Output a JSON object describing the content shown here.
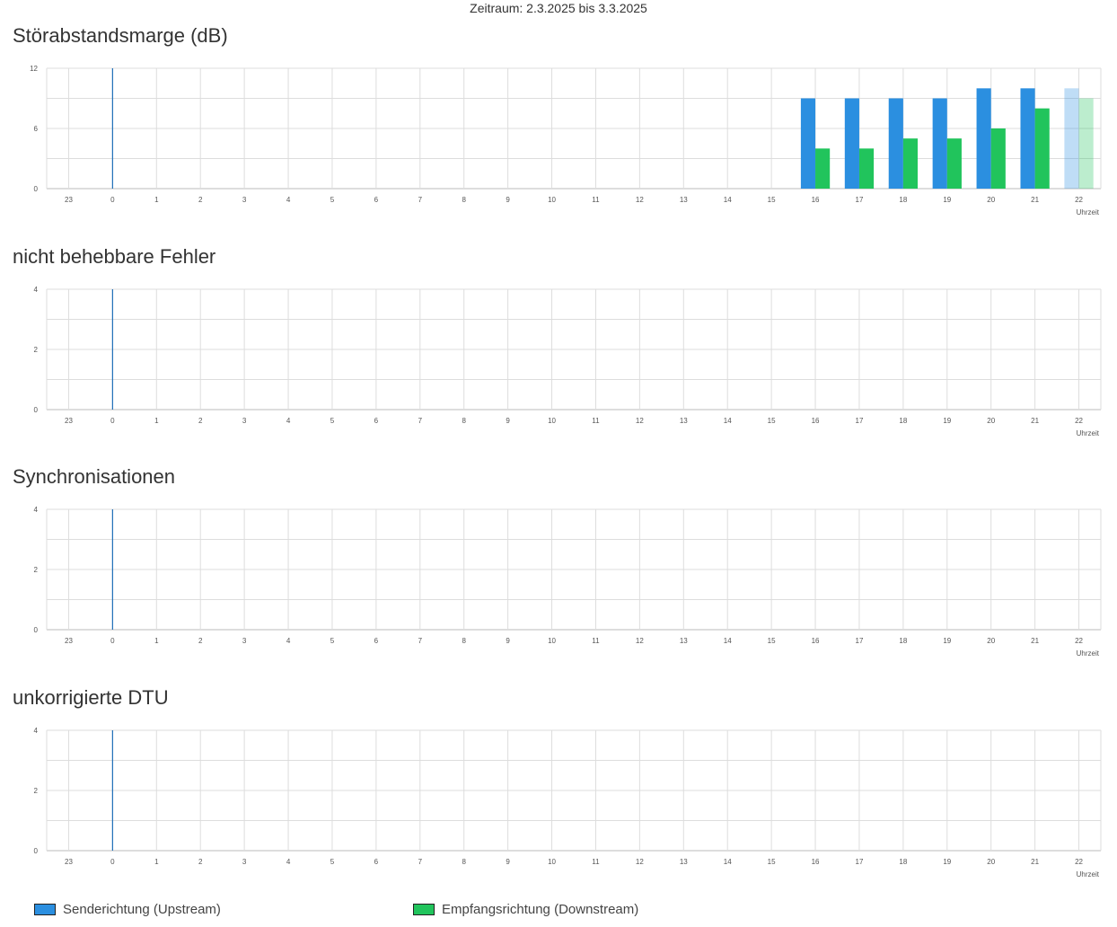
{
  "period": "Zeitraum: 2.3.2025 bis 3.3.2025",
  "colors": {
    "upstream": "#2b8fe0",
    "downstream": "#21c45c",
    "grid": "#dddddd",
    "axis": "#bbbbbb",
    "marker": "#1f6fb8"
  },
  "legend": {
    "upstream": "Senderichtung (Upstream)",
    "downstream": "Empfangsrichtung (Downstream)"
  },
  "chart_data": [
    {
      "type": "bar",
      "title": "Störabstandsmarge (dB)",
      "xlabel": "Uhrzeit",
      "ylabel": "",
      "categories": [
        "23",
        "0",
        "1",
        "2",
        "3",
        "4",
        "5",
        "6",
        "7",
        "8",
        "9",
        "10",
        "11",
        "12",
        "13",
        "14",
        "15",
        "16",
        "17",
        "18",
        "19",
        "20",
        "21",
        "22"
      ],
      "yticks": [
        0,
        6,
        12
      ],
      "ylim": [
        0,
        12
      ],
      "grid": true,
      "current_hour": "22",
      "series": [
        {
          "key": "upstream",
          "values": [
            null,
            null,
            null,
            null,
            null,
            null,
            null,
            null,
            null,
            null,
            null,
            null,
            null,
            null,
            null,
            null,
            null,
            9,
            9,
            9,
            9,
            10,
            10,
            10
          ]
        },
        {
          "key": "downstream",
          "values": [
            null,
            null,
            null,
            null,
            null,
            null,
            null,
            null,
            null,
            null,
            null,
            null,
            null,
            null,
            null,
            null,
            null,
            4,
            4,
            5,
            5,
            6,
            8,
            9
          ]
        }
      ]
    },
    {
      "type": "bar",
      "title": "nicht behebbare Fehler",
      "xlabel": "Uhrzeit",
      "ylabel": "",
      "categories": [
        "23",
        "0",
        "1",
        "2",
        "3",
        "4",
        "5",
        "6",
        "7",
        "8",
        "9",
        "10",
        "11",
        "12",
        "13",
        "14",
        "15",
        "16",
        "17",
        "18",
        "19",
        "20",
        "21",
        "22"
      ],
      "yticks": [
        0,
        2,
        4
      ],
      "ylim": [
        0,
        4
      ],
      "grid": true,
      "series": []
    },
    {
      "type": "bar",
      "title": "Synchronisationen",
      "xlabel": "Uhrzeit",
      "ylabel": "",
      "categories": [
        "23",
        "0",
        "1",
        "2",
        "3",
        "4",
        "5",
        "6",
        "7",
        "8",
        "9",
        "10",
        "11",
        "12",
        "13",
        "14",
        "15",
        "16",
        "17",
        "18",
        "19",
        "20",
        "21",
        "22"
      ],
      "yticks": [
        0,
        2,
        4
      ],
      "ylim": [
        0,
        4
      ],
      "grid": true,
      "series": []
    },
    {
      "type": "bar",
      "title": "unkorrigierte DTU",
      "xlabel": "Uhrzeit",
      "ylabel": "",
      "categories": [
        "23",
        "0",
        "1",
        "2",
        "3",
        "4",
        "5",
        "6",
        "7",
        "8",
        "9",
        "10",
        "11",
        "12",
        "13",
        "14",
        "15",
        "16",
        "17",
        "18",
        "19",
        "20",
        "21",
        "22"
      ],
      "yticks": [
        0,
        2,
        4
      ],
      "ylim": [
        0,
        4
      ],
      "grid": true,
      "series": []
    }
  ]
}
